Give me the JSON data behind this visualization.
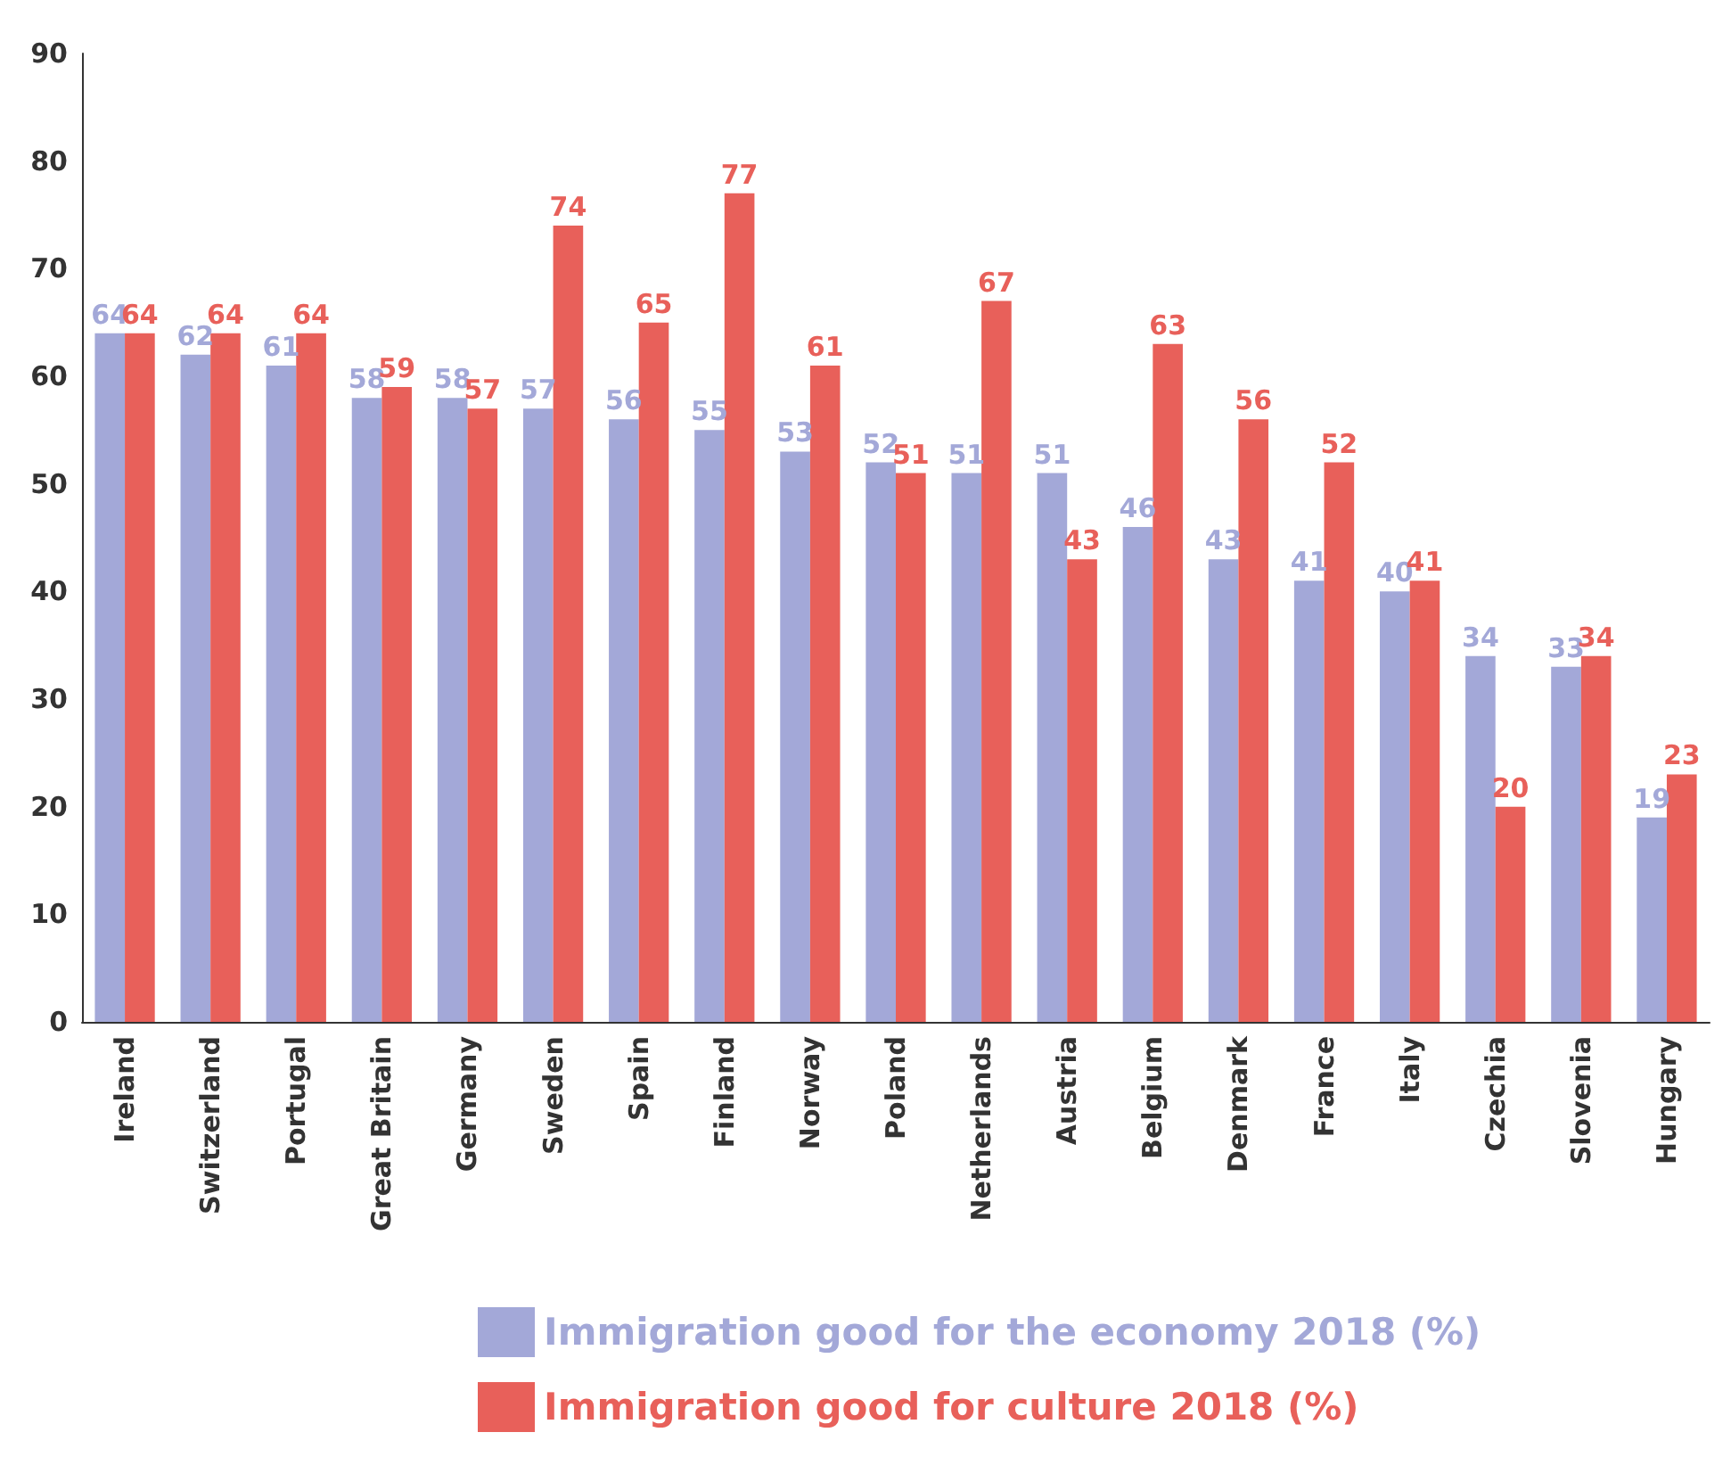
{
  "chart_data": {
    "type": "bar",
    "categories": [
      "Ireland",
      "Switzerland",
      "Portugal",
      "Great Britain",
      "Germany",
      "Sweden",
      "Spain",
      "Finland",
      "Norway",
      "Poland",
      "Netherlands",
      "Austria",
      "Belgium",
      "Denmark",
      "France",
      "Italy",
      "Czechia",
      "Slovenia",
      "Hungary"
    ],
    "series": [
      {
        "name": "Immigration good for the economy 2018 (%)",
        "color": "#a3a8d8",
        "values": [
          64,
          62,
          61,
          58,
          58,
          57,
          56,
          55,
          53,
          52,
          51,
          51,
          46,
          43,
          41,
          40,
          34,
          33,
          19
        ]
      },
      {
        "name": "Immigration good for culture 2018 (%)",
        "color": "#e8605a",
        "values": [
          64,
          64,
          64,
          59,
          57,
          74,
          65,
          77,
          61,
          51,
          67,
          43,
          63,
          56,
          52,
          41,
          20,
          34,
          23
        ]
      }
    ],
    "ylim": [
      0,
      90
    ],
    "yticks": [
      0,
      10,
      20,
      30,
      40,
      50,
      60,
      70,
      80,
      90
    ],
    "grid": false,
    "legend": "bottom",
    "data_labels": true
  }
}
